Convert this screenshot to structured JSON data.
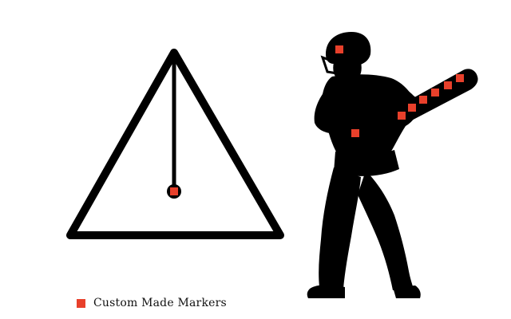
{
  "colors": {
    "silhouette": "#000000",
    "marker": "#e8402b",
    "background": "#ffffff"
  },
  "legend": {
    "label": "Custom Made Markers"
  },
  "figure": {
    "left_element": "pendulum-triangle",
    "right_element": "cricket-batsman-silhouette",
    "marker_count": 10
  }
}
